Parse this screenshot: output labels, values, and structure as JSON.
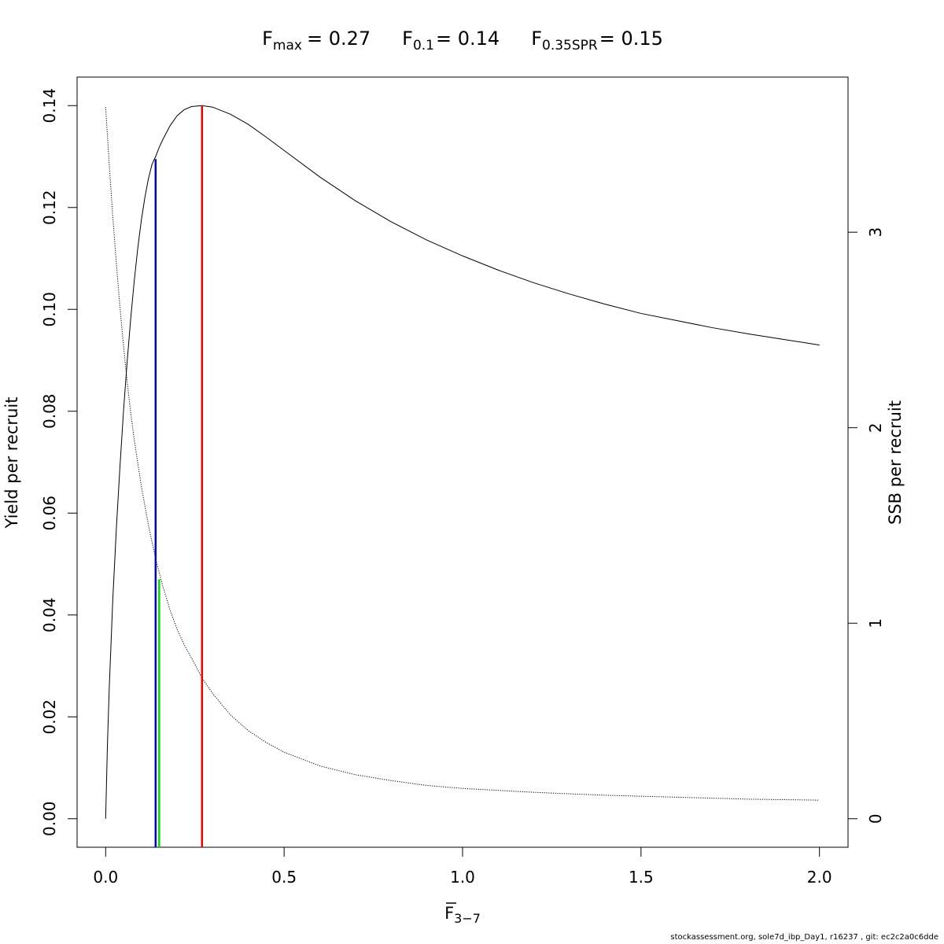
{
  "chart_data": {
    "type": "line",
    "title": {
      "fmax": {
        "base": "F",
        "sub": "max",
        "value": "= 0.27"
      },
      "f01": {
        "base": "F",
        "sub": "0.1",
        "value": "= 0.14"
      },
      "f35": {
        "base": "F",
        "sub": "0.35SPR",
        "value": "= 0.15"
      }
    },
    "xlabel": {
      "base": "F",
      "sub": "3−7"
    },
    "ylabel_left": "Yield per recruit",
    "ylabel_right": "SSB per recruit",
    "xlim": [
      -0.08,
      2.08
    ],
    "ylim_left": [
      -0.0056,
      0.1456
    ],
    "ylim_right": [
      -0.1459,
      3.7934
    ],
    "x_ticks": [
      "0.0",
      "0.5",
      "1.0",
      "1.5",
      "2.0"
    ],
    "y_left_ticks": [
      "0.00",
      "0.02",
      "0.04",
      "0.06",
      "0.08",
      "0.10",
      "0.12",
      "0.14"
    ],
    "y_right_ticks": [
      "0",
      "1",
      "2",
      "3"
    ],
    "series": [
      {
        "axis": "left",
        "style": "solid",
        "color": "#000000",
        "x": [
          0,
          0.005,
          0.01,
          0.02,
          0.03,
          0.04,
          0.05,
          0.06,
          0.07,
          0.08,
          0.09,
          0.1,
          0.11,
          0.12,
          0.13,
          0.14,
          0.15,
          0.16,
          0.18,
          0.2,
          0.22,
          0.24,
          0.27,
          0.3,
          0.35,
          0.4,
          0.45,
          0.5,
          0.6,
          0.7,
          0.8,
          0.9,
          1.0,
          1.1,
          1.2,
          1.3,
          1.4,
          1.5,
          1.6,
          1.7,
          1.8,
          1.9,
          2.0
        ],
        "y": [
          0,
          0.0145,
          0.0255,
          0.043,
          0.057,
          0.069,
          0.08,
          0.0895,
          0.098,
          0.1055,
          0.112,
          0.1175,
          0.122,
          0.1257,
          0.1285,
          0.13,
          0.1318,
          0.1333,
          0.136,
          0.138,
          0.1392,
          0.1398,
          0.14,
          0.1397,
          0.1383,
          0.1363,
          0.1338,
          0.1312,
          0.126,
          0.1213,
          0.1172,
          0.1136,
          0.1105,
          0.1077,
          0.1052,
          0.103,
          0.101,
          0.0992,
          0.0978,
          0.0964,
          0.0952,
          0.0941,
          0.093
        ]
      },
      {
        "axis": "right",
        "style": "dotted",
        "color": "#000000",
        "x": [
          0,
          0.01,
          0.02,
          0.03,
          0.04,
          0.05,
          0.06,
          0.07,
          0.08,
          0.1,
          0.12,
          0.14,
          0.16,
          0.18,
          0.2,
          0.22,
          0.25,
          0.27,
          0.3,
          0.35,
          0.4,
          0.45,
          0.5,
          0.6,
          0.7,
          0.8,
          0.9,
          1.0,
          1.2,
          1.4,
          1.6,
          1.8,
          2.0
        ],
        "y": [
          3.64,
          3.35,
          3.08,
          2.84,
          2.62,
          2.42,
          2.24,
          2.08,
          1.94,
          1.7,
          1.5,
          1.33,
          1.19,
          1.07,
          0.97,
          0.89,
          0.79,
          0.72,
          0.64,
          0.53,
          0.45,
          0.39,
          0.34,
          0.27,
          0.225,
          0.195,
          0.17,
          0.155,
          0.135,
          0.12,
          0.11,
          0.1,
          0.095
        ]
      }
    ],
    "reference_lines": [
      {
        "name": "F0.1",
        "x": 0.14,
        "y_top": 0.1295,
        "color": "#0000cc"
      },
      {
        "name": "F0.35SPR",
        "x": 0.15,
        "y_top": 0.047,
        "color": "#00dd00"
      },
      {
        "name": "Fmax",
        "x": 0.27,
        "y_top": 0.14,
        "color": "#ee0000"
      }
    ]
  },
  "footer": "stockassessment.org, sole7d_ibp_Day1, r16237 , git: ec2c2a0c6dde"
}
